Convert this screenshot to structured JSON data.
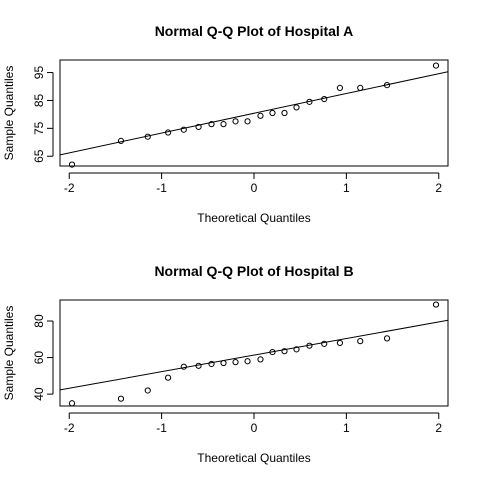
{
  "chart_data": [
    {
      "type": "scatter",
      "title": "Normal Q-Q Plot of Hospital A",
      "xlabel": "Theoretical Quantiles",
      "ylabel": "Sample Quantiles",
      "xlim": [
        -2.1,
        2.1
      ],
      "ylim": [
        61.5,
        99.5
      ],
      "xticks": [
        "-2",
        "-1",
        "0",
        "1",
        "2"
      ],
      "yticks": [
        "65",
        "75",
        "85",
        "95"
      ],
      "grid": false,
      "legend": "none",
      "series": [
        {
          "x": [
            -1.97,
            -1.44,
            -1.15,
            -0.93,
            -0.76,
            -0.6,
            -0.46,
            -0.33,
            -0.2,
            -0.07,
            0.07,
            0.2,
            0.33,
            0.46,
            0.6,
            0.76,
            0.93,
            1.15,
            1.44,
            1.97
          ],
          "y": [
            62,
            70.5,
            72,
            73.5,
            74.5,
            75.5,
            76.5,
            76.5,
            77.5,
            77.5,
            79.5,
            80.5,
            80.5,
            82.5,
            84.5,
            85.5,
            89.5,
            89.5,
            90.5,
            97.5
          ]
        }
      ],
      "reference_line": {
        "x": [
          -2.1,
          2.1
        ],
        "y": [
          65.5,
          95.3
        ]
      }
    },
    {
      "type": "scatter",
      "title": "Normal Q-Q Plot of Hospital B",
      "xlabel": "Theoretical Quantiles",
      "ylabel": "Sample Quantiles",
      "xlim": [
        -2.1,
        2.1
      ],
      "ylim": [
        33.5,
        91.5
      ],
      "xticks": [
        "-2",
        "-1",
        "0",
        "1",
        "2"
      ],
      "yticks": [
        "40",
        "60",
        "80"
      ],
      "grid": false,
      "legend": "none",
      "series": [
        {
          "x": [
            -1.97,
            -1.44,
            -1.15,
            -0.93,
            -0.76,
            -0.6,
            -0.46,
            -0.33,
            -0.2,
            -0.07,
            0.07,
            0.2,
            0.33,
            0.46,
            0.6,
            0.76,
            0.93,
            1.15,
            1.44,
            1.97
          ],
          "y": [
            35,
            37.5,
            42,
            49,
            55,
            55.5,
            56.5,
            57,
            57.5,
            58,
            59,
            63,
            63.5,
            64.5,
            66.5,
            67.5,
            68,
            69,
            70.5,
            89
          ]
        }
      ],
      "reference_line": {
        "x": [
          -2.1,
          2.1
        ],
        "y": [
          42.3,
          80.4
        ]
      }
    }
  ]
}
